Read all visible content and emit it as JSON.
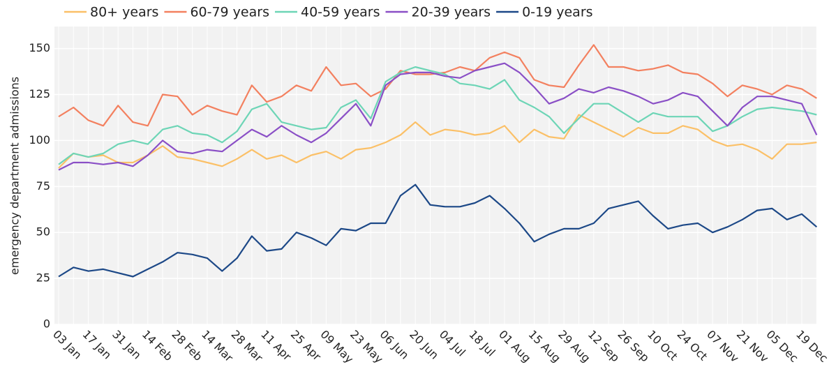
{
  "chart_data": {
    "type": "line",
    "y_label": "emergency department admissions",
    "x": [
      "03 Jan",
      "10 Jan",
      "17 Jan",
      "24 Jan",
      "31 Jan",
      "07 Feb",
      "14 Feb",
      "21 Feb",
      "28 Feb",
      "07 Mar",
      "14 Mar",
      "21 Mar",
      "28 Mar",
      "04 Apr",
      "11 Apr",
      "18 Apr",
      "25 Apr",
      "02 May",
      "09 May",
      "16 May",
      "23 May",
      "30 May",
      "06 Jun",
      "13 Jun",
      "20 Jun",
      "27 Jun",
      "04 Jul",
      "11 Jul",
      "18 Jul",
      "25 Jul",
      "01 Aug",
      "08 Aug",
      "15 Aug",
      "22 Aug",
      "29 Aug",
      "05 Sep",
      "12 Sep",
      "19 Sep",
      "26 Sep",
      "03 Oct",
      "10 Oct",
      "17 Oct",
      "24 Oct",
      "31 Oct",
      "07 Nov",
      "14 Nov",
      "21 Nov",
      "28 Nov",
      "05 Dec",
      "12 Dec",
      "19 Dec",
      "26 Dec"
    ],
    "xticks": [
      "03 Jan",
      "17 Jan",
      "31 Jan",
      "14 Feb",
      "28 Feb",
      "14 Mar",
      "28 Mar",
      "11 Apr",
      "25 Apr",
      "09 May",
      "23 May",
      "06 Jun",
      "20 Jun",
      "04 Jul",
      "18 Jul",
      "01 Aug",
      "15 Aug",
      "29 Aug",
      "12 Sep",
      "26 Sep",
      "10 Oct",
      "24 Oct",
      "07 Nov",
      "21 Nov",
      "05 Dec",
      "19 Dec"
    ],
    "ylim": [
      0,
      162
    ],
    "yticks": [
      0,
      25,
      50,
      75,
      100,
      125,
      150
    ],
    "grid": true,
    "legend": "top",
    "series": [
      {
        "name": "80+ years",
        "color": "#fbc067",
        "values": [
          85,
          93,
          91,
          92,
          88,
          88,
          92,
          97,
          91,
          90,
          88,
          86,
          90,
          95,
          90,
          92,
          88,
          92,
          94,
          90,
          95,
          96,
          99,
          103,
          110,
          103,
          106,
          105,
          103,
          104,
          108,
          99,
          106,
          102,
          101,
          114,
          110,
          106,
          102,
          107,
          104,
          104,
          108,
          106,
          100,
          97,
          98,
          95,
          90,
          98,
          98,
          99
        ]
      },
      {
        "name": "60-79 years",
        "color": "#f3805f",
        "values": [
          113,
          118,
          111,
          108,
          119,
          110,
          108,
          125,
          124,
          114,
          119,
          116,
          114,
          130,
          121,
          124,
          130,
          127,
          140,
          130,
          131,
          124,
          128,
          138,
          136,
          136,
          137,
          140,
          138,
          145,
          148,
          145,
          133,
          130,
          129,
          141,
          152,
          140,
          140,
          138,
          139,
          141,
          137,
          136,
          131,
          124,
          130,
          128,
          125,
          130,
          128,
          123
        ]
      },
      {
        "name": "40-59 years",
        "color": "#6dd5b6",
        "values": [
          87,
          93,
          91,
          93,
          98,
          100,
          98,
          106,
          108,
          104,
          103,
          99,
          105,
          117,
          120,
          110,
          108,
          106,
          107,
          118,
          122,
          112,
          132,
          137,
          140,
          138,
          136,
          131,
          130,
          128,
          133,
          122,
          118,
          113,
          104,
          112,
          120,
          120,
          115,
          110,
          115,
          113,
          113,
          113,
          105,
          108,
          113,
          117,
          118,
          117,
          116,
          114
        ]
      },
      {
        "name": "20-39 years",
        "color": "#8a4fc6",
        "values": [
          84,
          88,
          88,
          87,
          88,
          86,
          92,
          100,
          94,
          93,
          95,
          94,
          100,
          106,
          102,
          108,
          103,
          99,
          104,
          112,
          120,
          108,
          130,
          136,
          137,
          137,
          135,
          134,
          138,
          140,
          142,
          137,
          129,
          120,
          123,
          128,
          126,
          129,
          127,
          124,
          120,
          122,
          126,
          124,
          116,
          108,
          118,
          124,
          124,
          122,
          120,
          103
        ]
      },
      {
        "name": "0-19 years",
        "color": "#1c4887",
        "values": [
          26,
          31,
          29,
          30,
          28,
          26,
          30,
          34,
          39,
          38,
          36,
          29,
          36,
          48,
          40,
          41,
          50,
          47,
          43,
          52,
          51,
          55,
          55,
          70,
          76,
          65,
          64,
          64,
          66,
          70,
          63,
          55,
          45,
          49,
          52,
          52,
          55,
          63,
          65,
          67,
          59,
          52,
          54,
          55,
          50,
          53,
          57,
          62,
          63,
          57,
          60,
          53
        ]
      }
    ]
  }
}
